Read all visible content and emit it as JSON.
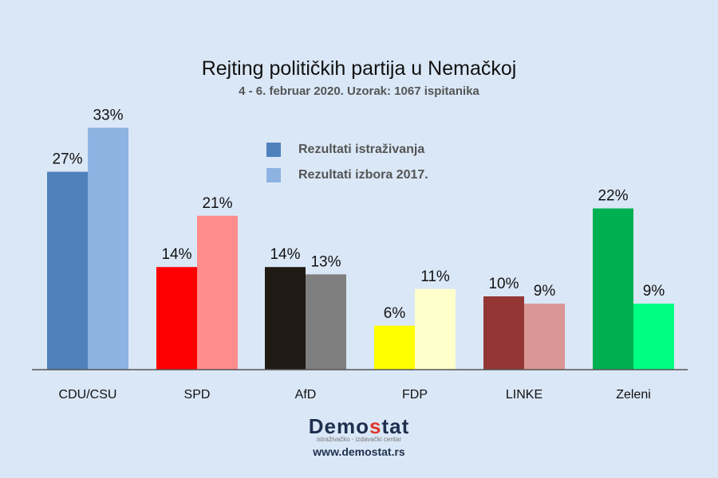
{
  "chart_data": {
    "type": "bar",
    "title": "Rejting političkih partija u Nemačkoj",
    "subtitle": "4 - 6. februar 2020. Uzorak: 1067 ispitanika",
    "categories": [
      "CDU/CSU",
      "SPD",
      "AfD",
      "FDP",
      "LINKE",
      "Zeleni"
    ],
    "series": [
      {
        "name": "Rezultati istraživanja",
        "values": [
          27,
          14,
          14,
          6,
          10,
          22
        ],
        "colors": [
          "#4f81bd",
          "#ff0000",
          "#1f1a14",
          "#ffff00",
          "#943634",
          "#00b050"
        ]
      },
      {
        "name": "Rezultati izbora 2017.",
        "values": [
          33,
          21,
          13,
          11,
          9,
          9
        ],
        "colors": [
          "#8db3e2",
          "#ff8c8c",
          "#7f7f7f",
          "#ffffcc",
          "#d99694",
          "#00ff80"
        ]
      }
    ],
    "value_suffix": "%",
    "ylim": [
      0,
      35
    ],
    "grid": false,
    "legend": "top-center"
  },
  "logo": {
    "name_pre": "Demo",
    "name_s": "s",
    "name_post": "tat",
    "tagline": "istraživačko - izdavački centar",
    "url": "www.demostat.rs"
  }
}
